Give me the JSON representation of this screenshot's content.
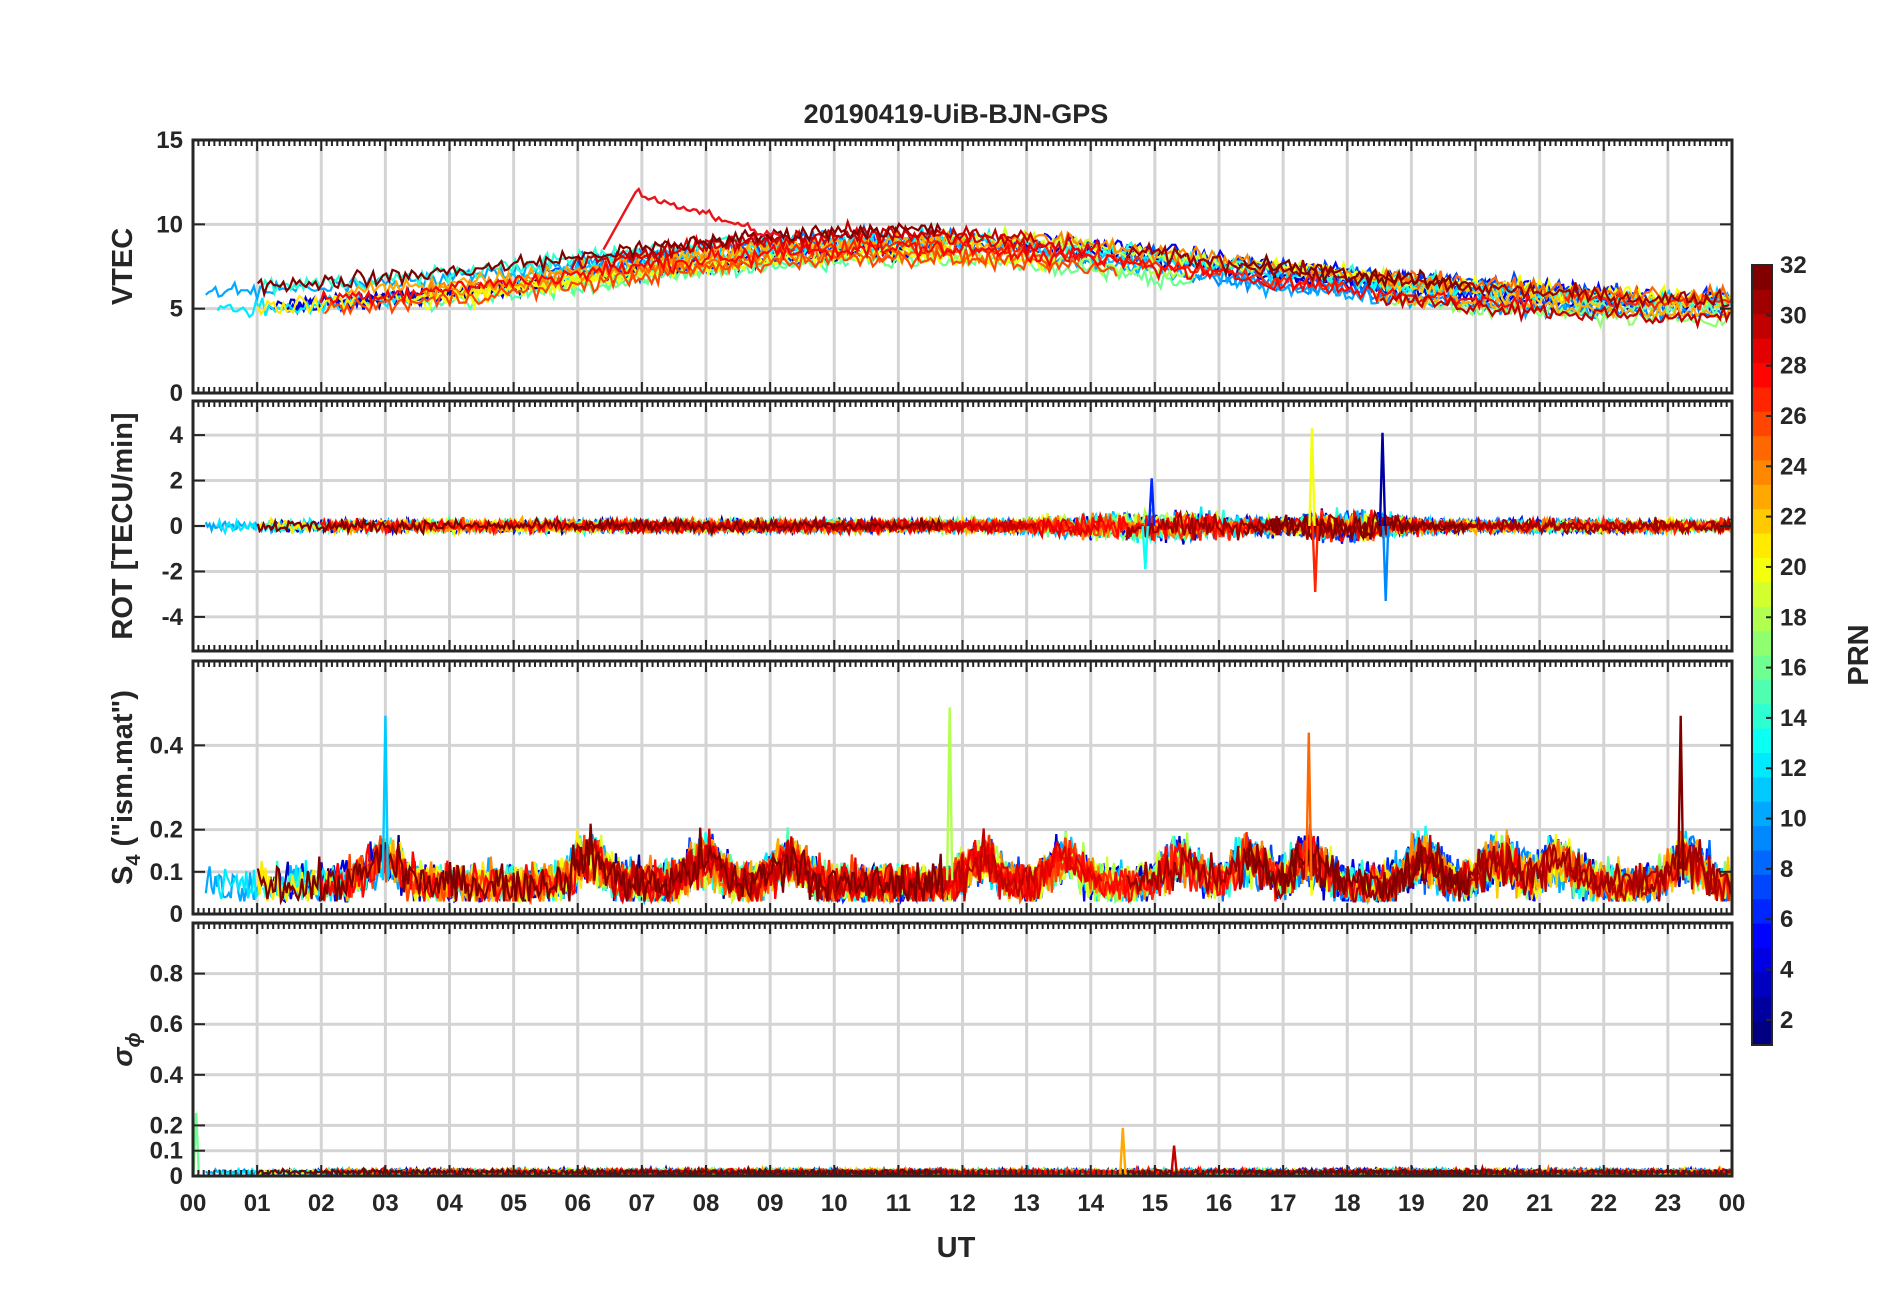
{
  "chart_data": {
    "type": "line",
    "title": "20190419-UiB-BJN-GPS",
    "xlabel": "UT",
    "x_ticks": [
      "00",
      "01",
      "02",
      "03",
      "04",
      "05",
      "06",
      "07",
      "08",
      "09",
      "10",
      "11",
      "12",
      "13",
      "14",
      "15",
      "16",
      "17",
      "18",
      "19",
      "20",
      "21",
      "22",
      "23",
      "00"
    ],
    "xlim_hours": [
      0,
      24
    ],
    "panels": [
      {
        "id": "vtec",
        "ylabel": "VTEC",
        "ylim": [
          0,
          15
        ],
        "yticks": [
          0,
          5,
          10,
          15
        ],
        "ytick_labels": [
          "0",
          "5",
          "10",
          "15"
        ],
        "summary": "Tracks of about 32 PRNs; VTEC rises from ~5 TECU near 00 UT to a broad daytime maximum of ~8-10 TECU (peak ~12 TECU near 07 UT), and declines to ~5 TECU by 24 UT."
      },
      {
        "id": "rot",
        "ylabel": "ROT [TECU/min]",
        "ylim": [
          -5.5,
          5.5
        ],
        "yticks": [
          -4,
          -2,
          0,
          2,
          4
        ],
        "ytick_labels": [
          "-4",
          "-2",
          "0",
          "2",
          "4"
        ],
        "summary": "Rate of TEC mostly within ±0.5 TECU/min; spikes near 15 UT (~2 / -2) and 17.4-18.6 UT reaching ~4.3 and -3.3 TECU/min."
      },
      {
        "id": "s4",
        "ylabel_main": "S",
        "ylabel_sub": "4",
        "ylabel_rest": " (\"ism.mat\")",
        "ylim": [
          0,
          0.6
        ],
        "yticks": [
          0,
          0.1,
          0.2,
          0.4
        ],
        "ytick_labels": [
          "0",
          "0.1",
          "0.2",
          "0.4"
        ],
        "summary": "Amplitude scintillation index mostly 0.05-0.2; peaks ~0.47 near 03 UT, ~0.49 near 11.8 UT, ~0.43 near 17.4 UT and ~0.47 near 23.2 UT."
      },
      {
        "id": "sigma_phi",
        "ylabel_main": "σ",
        "ylabel_sub": "ϕ",
        "ylim": [
          0,
          1.0
        ],
        "yticks": [
          0,
          0.1,
          0.2,
          0.4,
          0.6,
          0.8
        ],
        "ytick_labels": [
          "0",
          "0.1",
          "0.2",
          "0.4",
          "0.6",
          "0.8"
        ],
        "summary": "Phase scintillation index near 0.01-0.03 all day; isolated spikes ~0.25 at 00 UT, ~0.19 at 14.5 UT, ~0.12 at 15.3 UT."
      }
    ],
    "colorbar": {
      "label": "PRN",
      "range": [
        1,
        32
      ],
      "ticks": [
        2,
        4,
        6,
        8,
        10,
        12,
        14,
        16,
        18,
        20,
        22,
        24,
        26,
        28,
        30,
        32
      ],
      "tick_labels": [
        "2",
        "4",
        "6",
        "8",
        "10",
        "12",
        "14",
        "16",
        "18",
        "20",
        "22",
        "24",
        "26",
        "28",
        "30",
        "32"
      ],
      "colormap": "jet"
    },
    "highlights": {
      "vtec_peak": {
        "x": 6.9,
        "y": 11.9
      },
      "rot_spikes": [
        {
          "x": 14.95,
          "y": 2.1
        },
        {
          "x": 14.85,
          "y": -1.9
        },
        {
          "x": 17.45,
          "y": 4.3
        },
        {
          "x": 17.5,
          "y": -2.9
        },
        {
          "x": 18.55,
          "y": 4.1
        },
        {
          "x": 18.6,
          "y": -3.3
        }
      ],
      "s4_peaks": [
        {
          "x": 3.0,
          "y": 0.47
        },
        {
          "x": 11.8,
          "y": 0.49
        },
        {
          "x": 17.4,
          "y": 0.43
        },
        {
          "x": 23.2,
          "y": 0.47
        }
      ],
      "sigma_spikes": [
        {
          "x": 0.05,
          "y": 0.25
        },
        {
          "x": 14.5,
          "y": 0.19
        },
        {
          "x": 15.3,
          "y": 0.12
        }
      ]
    }
  }
}
